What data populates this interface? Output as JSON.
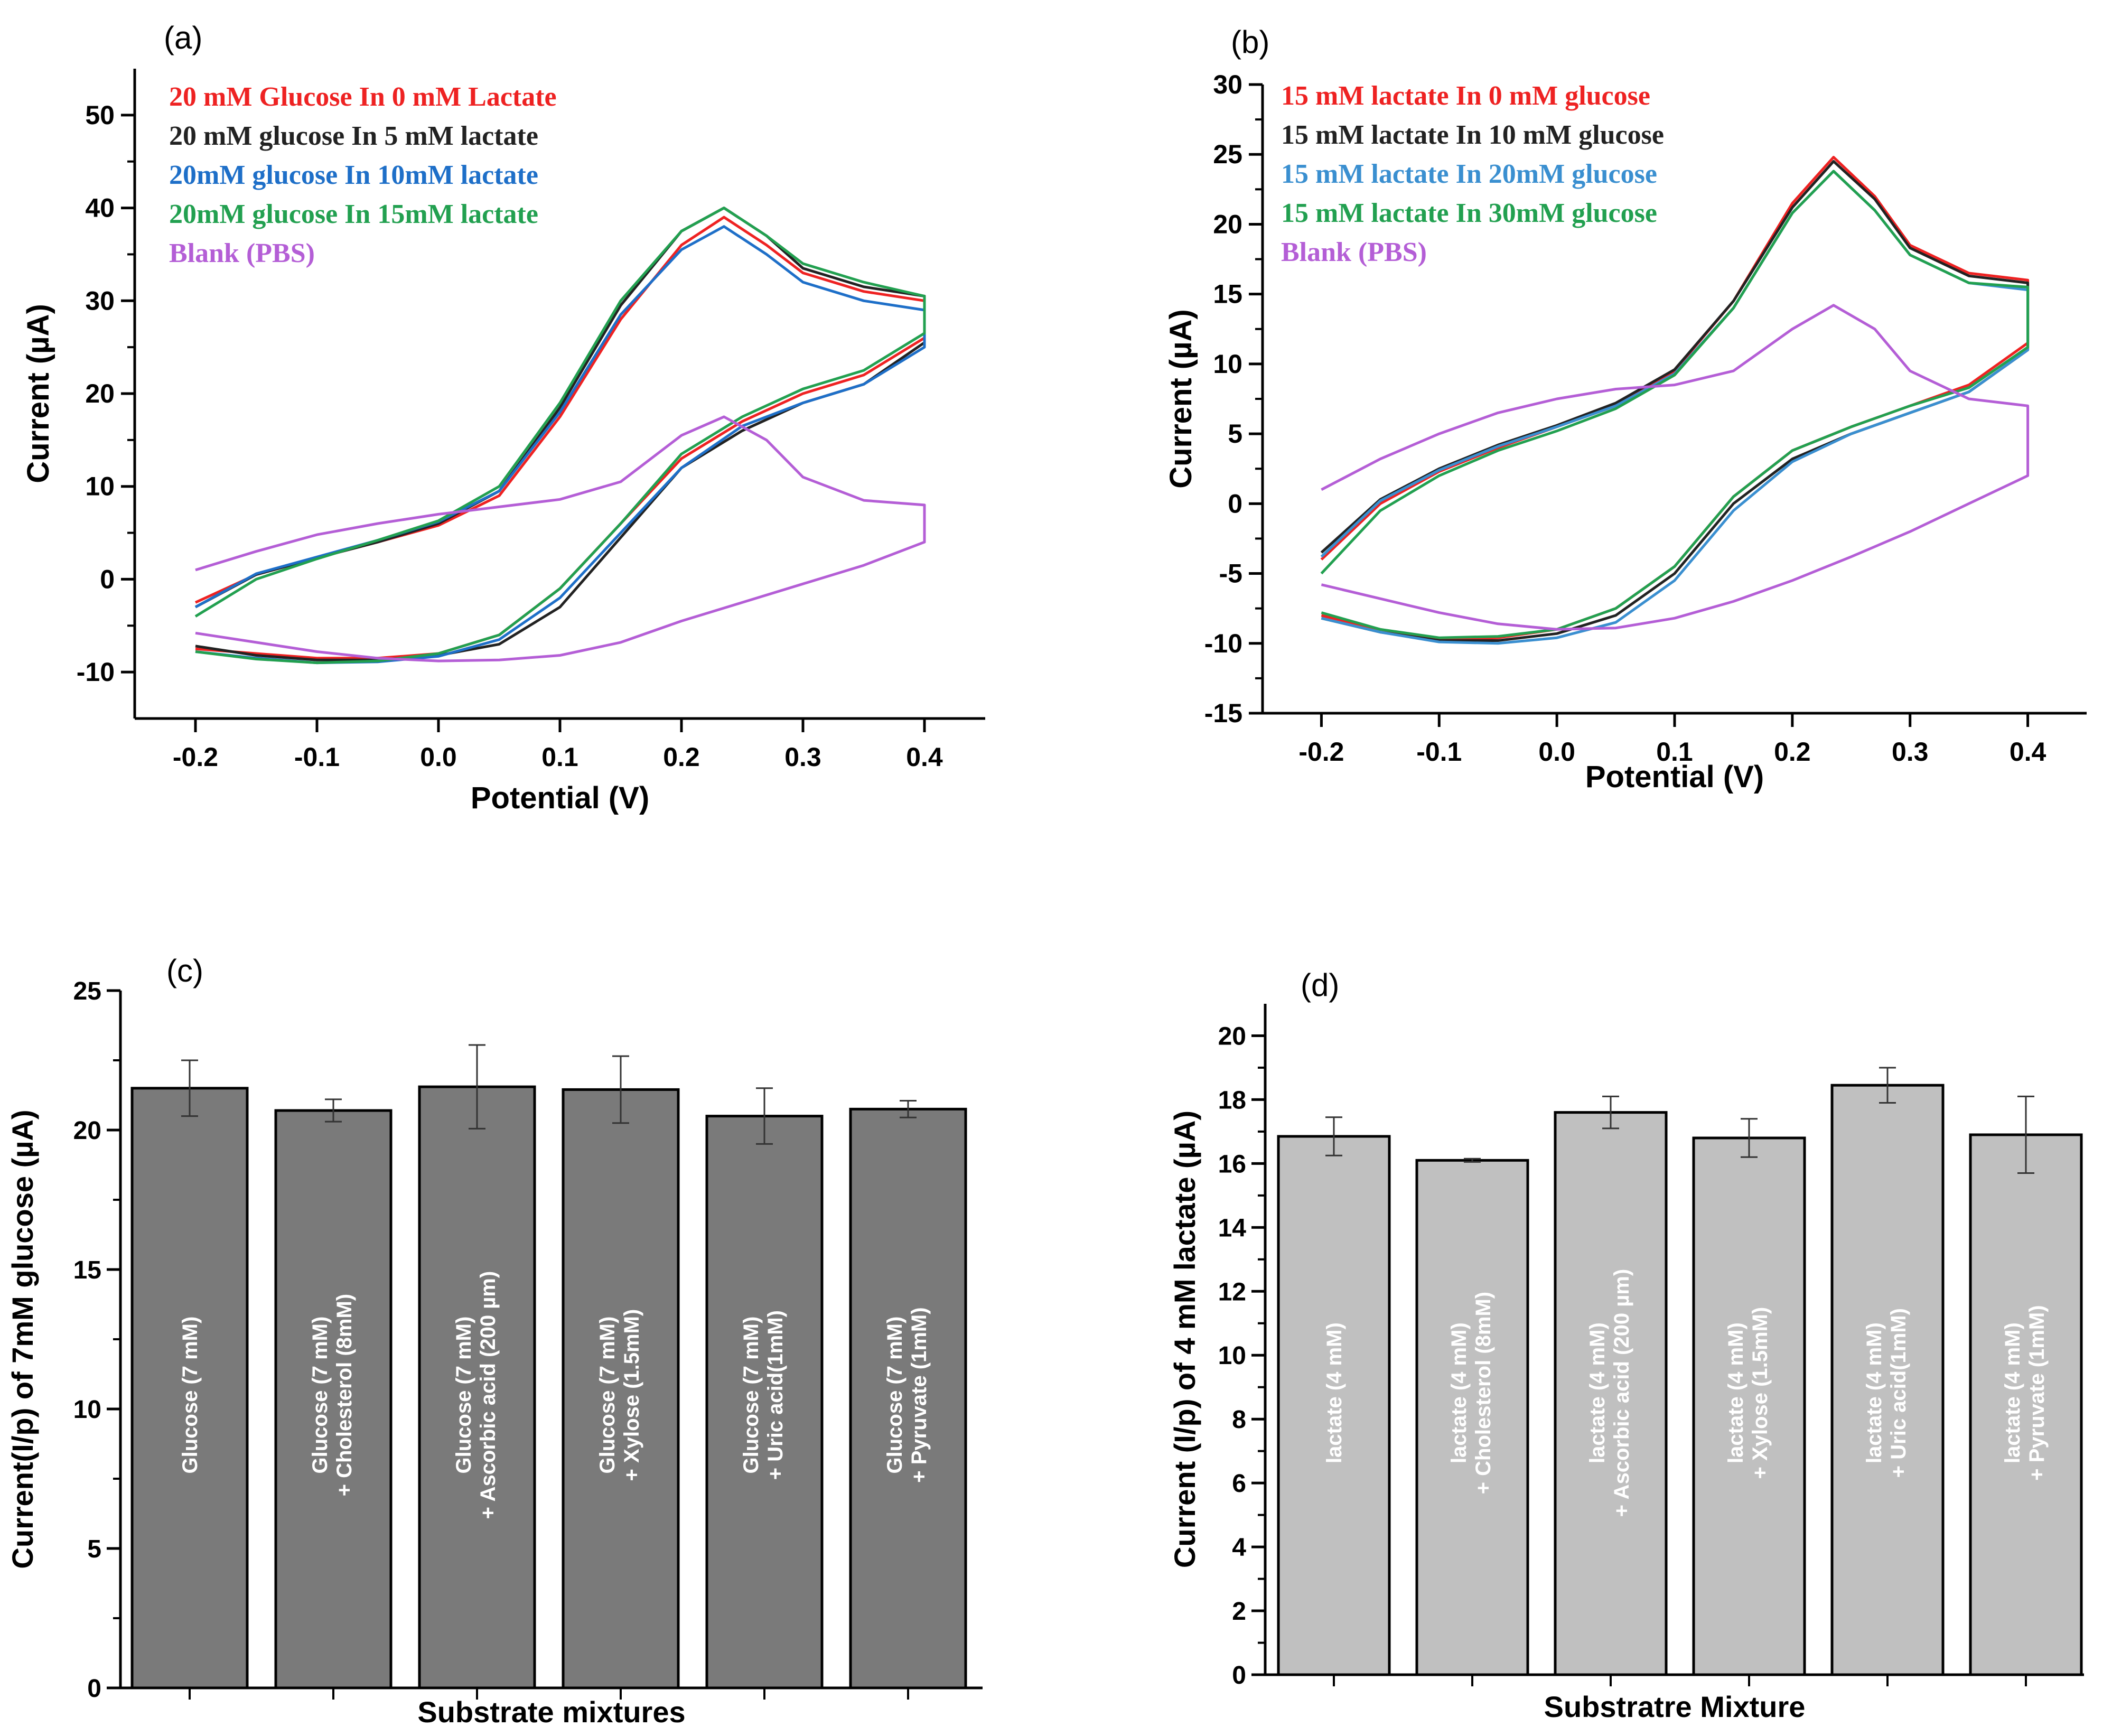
{
  "chart_data": [
    {
      "panel": "(a)",
      "type": "line",
      "xlabel": "Potential (V)",
      "ylabel": "Current (µA)",
      "xlim": [
        -0.25,
        0.45
      ],
      "ylim": [
        -15,
        55
      ],
      "xticks": [
        -0.2,
        -0.1,
        0.0,
        0.1,
        0.2,
        0.3,
        0.4
      ],
      "yticks": [
        -10,
        0,
        10,
        20,
        30,
        40,
        50
      ],
      "tick_labels_x": [
        "-0.2",
        "-0.1",
        "0.0",
        "0.1",
        "0.2",
        "0.3",
        "0.4"
      ],
      "tick_labels_y": [
        "-10",
        "0",
        "10",
        "20",
        "30",
        "40",
        "50"
      ],
      "legend_position": "top-left",
      "series": [
        {
          "name": "20 mM Glucose In 0 mM Lactate",
          "color": "#ee2222",
          "anodic_x": [
            -0.2,
            -0.15,
            -0.1,
            -0.05,
            0.0,
            0.05,
            0.1,
            0.15,
            0.2,
            0.235,
            0.27,
            0.3,
            0.35,
            0.4
          ],
          "anodic_y": [
            -2.5,
            0.5,
            2.3,
            4.0,
            5.8,
            9.0,
            17.5,
            28.0,
            36.0,
            39.0,
            36.0,
            33.0,
            31.0,
            30.0
          ],
          "cathodic_x": [
            0.4,
            0.35,
            0.3,
            0.25,
            0.2,
            0.15,
            0.1,
            0.05,
            0.0,
            -0.05,
            -0.1,
            -0.15,
            -0.2
          ],
          "cathodic_y": [
            26.0,
            22.0,
            20.0,
            17.0,
            13.0,
            6.0,
            -1.0,
            -6.0,
            -8.0,
            -8.5,
            -8.5,
            -8.0,
            -7.5
          ]
        },
        {
          "name": "20 mM glucose  In 5 mM lactate",
          "color": "#222222",
          "anodic_x": [
            -0.2,
            -0.15,
            -0.1,
            -0.05,
            0.0,
            0.05,
            0.1,
            0.15,
            0.2,
            0.235,
            0.27,
            0.3,
            0.35,
            0.4
          ],
          "anodic_y": [
            -3.0,
            0.5,
            2.3,
            4.0,
            6.0,
            9.5,
            18.5,
            29.5,
            37.5,
            40.0,
            37.0,
            33.5,
            31.5,
            30.5
          ],
          "cathodic_x": [
            0.4,
            0.35,
            0.3,
            0.25,
            0.2,
            0.15,
            0.1,
            0.05,
            0.0,
            -0.05,
            -0.1,
            -0.15,
            -0.2
          ],
          "cathodic_y": [
            25.5,
            21.0,
            19.0,
            16.0,
            12.0,
            4.5,
            -3.0,
            -7.0,
            -8.2,
            -8.7,
            -8.7,
            -8.2,
            -7.2
          ]
        },
        {
          "name": "20mM glucose In 10mM lactate",
          "color": "#1e6fc8",
          "anodic_x": [
            -0.2,
            -0.15,
            -0.1,
            -0.05,
            0.0,
            0.05,
            0.1,
            0.15,
            0.2,
            0.235,
            0.27,
            0.3,
            0.35,
            0.4
          ],
          "anodic_y": [
            -3.0,
            0.6,
            2.4,
            4.2,
            6.2,
            9.5,
            18.0,
            28.5,
            35.5,
            38.0,
            35.0,
            32.0,
            30.0,
            29.0
          ],
          "cathodic_x": [
            0.4,
            0.35,
            0.3,
            0.25,
            0.2,
            0.15,
            0.1,
            0.05,
            0.0,
            -0.05,
            -0.1,
            -0.15,
            -0.2
          ],
          "cathodic_y": [
            25.0,
            21.0,
            19.0,
            16.5,
            12.0,
            5.0,
            -2.0,
            -6.5,
            -8.3,
            -8.9,
            -9.0,
            -8.5,
            -7.8
          ]
        },
        {
          "name": "20mM glucose In 15mM lactate",
          "color": "#22a050",
          "anodic_x": [
            -0.2,
            -0.15,
            -0.1,
            -0.05,
            0.0,
            0.05,
            0.1,
            0.15,
            0.2,
            0.235,
            0.27,
            0.3,
            0.35,
            0.4
          ],
          "anodic_y": [
            -4.0,
            0.0,
            2.2,
            4.2,
            6.3,
            10.0,
            19.0,
            30.0,
            37.5,
            40.0,
            37.0,
            34.0,
            32.0,
            30.5
          ],
          "cathodic_x": [
            0.4,
            0.35,
            0.3,
            0.25,
            0.2,
            0.15,
            0.1,
            0.05,
            0.0,
            -0.05,
            -0.1,
            -0.15,
            -0.2
          ],
          "cathodic_y": [
            26.5,
            22.5,
            20.5,
            17.5,
            13.5,
            6.0,
            -1.0,
            -6.0,
            -8.0,
            -8.8,
            -9.0,
            -8.6,
            -7.8
          ]
        },
        {
          "name": "Blank (PBS)",
          "color": "#b45ed6",
          "anodic_x": [
            -0.2,
            -0.15,
            -0.1,
            -0.05,
            0.0,
            0.05,
            0.1,
            0.15,
            0.2,
            0.235,
            0.27,
            0.3,
            0.35,
            0.4
          ],
          "anodic_y": [
            1.0,
            3.0,
            4.8,
            6.0,
            7.0,
            7.8,
            8.6,
            10.5,
            15.5,
            17.5,
            15.0,
            11.0,
            8.5,
            8.0
          ],
          "cathodic_x": [
            0.4,
            0.35,
            0.3,
            0.25,
            0.2,
            0.15,
            0.1,
            0.05,
            0.0,
            -0.05,
            -0.1,
            -0.15,
            -0.2
          ],
          "cathodic_y": [
            4.0,
            1.5,
            -0.5,
            -2.5,
            -4.5,
            -6.8,
            -8.2,
            -8.7,
            -8.8,
            -8.5,
            -7.8,
            -6.8,
            -5.8
          ]
        }
      ]
    },
    {
      "panel": "(b)",
      "type": "line",
      "xlabel": "Potential (V)",
      "ylabel": "Current (µA)",
      "xlim": [
        -0.25,
        0.45
      ],
      "ylim": [
        -15,
        30
      ],
      "xticks": [
        -0.2,
        -0.1,
        0.0,
        0.1,
        0.2,
        0.3,
        0.4
      ],
      "yticks": [
        -15,
        -10,
        -5,
        0,
        5,
        10,
        15,
        20,
        25,
        30
      ],
      "tick_labels_x": [
        "-0.2",
        "-0.1",
        "0.0",
        "0.1",
        "0.2",
        "0.3",
        "0.4"
      ],
      "tick_labels_y": [
        "-15",
        "-10",
        "-5",
        "0",
        "5",
        "10",
        "15",
        "20",
        "25",
        "30"
      ],
      "legend_position": "top-left",
      "series": [
        {
          "name": "15 mM lactate In 0 mM glucose",
          "color": "#ee2222",
          "anodic_x": [
            -0.2,
            -0.15,
            -0.1,
            -0.05,
            0.0,
            0.05,
            0.1,
            0.15,
            0.2,
            0.235,
            0.27,
            0.3,
            0.35,
            0.4
          ],
          "anodic_y": [
            -4.0,
            0.0,
            2.3,
            4.0,
            5.5,
            7.0,
            9.5,
            14.5,
            21.5,
            24.8,
            22.0,
            18.5,
            16.5,
            16.0
          ],
          "cathodic_x": [
            0.4,
            0.35,
            0.3,
            0.25,
            0.2,
            0.15,
            0.1,
            0.05,
            0.0,
            -0.05,
            -0.1,
            -0.15,
            -0.2
          ],
          "cathodic_y": [
            11.5,
            8.5,
            7.0,
            5.5,
            3.8,
            0.5,
            -4.5,
            -7.5,
            -9.0,
            -9.6,
            -9.7,
            -9.0,
            -8.0
          ]
        },
        {
          "name": "15 mM lactate In 10 mM glucose",
          "color": "#222222",
          "anodic_x": [
            -0.2,
            -0.15,
            -0.1,
            -0.05,
            0.0,
            0.05,
            0.1,
            0.15,
            0.2,
            0.235,
            0.27,
            0.3,
            0.35,
            0.4
          ],
          "anodic_y": [
            -3.5,
            0.3,
            2.5,
            4.2,
            5.6,
            7.2,
            9.6,
            14.5,
            21.2,
            24.5,
            21.8,
            18.3,
            16.3,
            15.8
          ],
          "cathodic_x": [
            0.4,
            0.35,
            0.3,
            0.25,
            0.2,
            0.15,
            0.1,
            0.05,
            0.0,
            -0.05,
            -0.1,
            -0.15,
            -0.2
          ],
          "cathodic_y": [
            11.0,
            8.0,
            6.5,
            5.0,
            3.2,
            0.0,
            -5.0,
            -8.0,
            -9.3,
            -9.8,
            -9.8,
            -9.2,
            -8.2
          ]
        },
        {
          "name": "15 mM lactate In 20mM glucose",
          "color": "#3a8fd0",
          "anodic_x": [
            -0.2,
            -0.15,
            -0.1,
            -0.05,
            0.0,
            0.05,
            0.1,
            0.15,
            0.2,
            0.235,
            0.27,
            0.3,
            0.35,
            0.4
          ],
          "anodic_y": [
            -3.8,
            0.2,
            2.4,
            4.1,
            5.5,
            7.0,
            9.3,
            14.0,
            20.8,
            23.8,
            21.0,
            17.8,
            15.8,
            15.3
          ],
          "cathodic_x": [
            0.4,
            0.35,
            0.3,
            0.25,
            0.2,
            0.15,
            0.1,
            0.05,
            0.0,
            -0.05,
            -0.1,
            -0.15,
            -0.2
          ],
          "cathodic_y": [
            11.0,
            8.0,
            6.5,
            5.0,
            3.0,
            -0.5,
            -5.5,
            -8.5,
            -9.6,
            -10.0,
            -9.9,
            -9.2,
            -8.2
          ]
        },
        {
          "name": "15 mM lactate In 30mM glucose",
          "color": "#22a050",
          "anodic_x": [
            -0.2,
            -0.15,
            -0.1,
            -0.05,
            0.0,
            0.05,
            0.1,
            0.15,
            0.2,
            0.235,
            0.27,
            0.3,
            0.35,
            0.4
          ],
          "anodic_y": [
            -5.0,
            -0.5,
            2.0,
            3.8,
            5.2,
            6.8,
            9.2,
            14.0,
            20.8,
            23.8,
            21.0,
            17.8,
            15.8,
            15.5
          ],
          "cathodic_x": [
            0.4,
            0.35,
            0.3,
            0.25,
            0.2,
            0.15,
            0.1,
            0.05,
            0.0,
            -0.05,
            -0.1,
            -0.15,
            -0.2
          ],
          "cathodic_y": [
            11.2,
            8.3,
            7.0,
            5.5,
            3.8,
            0.5,
            -4.5,
            -7.5,
            -9.0,
            -9.5,
            -9.6,
            -9.0,
            -7.8
          ]
        },
        {
          "name": "Blank (PBS)",
          "color": "#b45ed6",
          "anodic_x": [
            -0.2,
            -0.15,
            -0.1,
            -0.05,
            0.0,
            0.05,
            0.1,
            0.15,
            0.2,
            0.235,
            0.27,
            0.3,
            0.35,
            0.4
          ],
          "anodic_y": [
            1.0,
            3.2,
            5.0,
            6.5,
            7.5,
            8.2,
            8.5,
            9.5,
            12.5,
            14.2,
            12.5,
            9.5,
            7.5,
            7.0
          ],
          "cathodic_x": [
            0.4,
            0.35,
            0.3,
            0.25,
            0.2,
            0.15,
            0.1,
            0.05,
            0.0,
            -0.05,
            -0.1,
            -0.15,
            -0.2
          ],
          "cathodic_y": [
            2.0,
            0.0,
            -2.0,
            -3.8,
            -5.5,
            -7.0,
            -8.2,
            -8.9,
            -9.0,
            -8.6,
            -7.8,
            -6.8,
            -5.8
          ]
        }
      ]
    },
    {
      "panel": "(c)",
      "type": "bar",
      "xlabel": "Substrate mixtures",
      "ylabel": "Current(I/p) of 7mM glucose (µA)",
      "ylim": [
        0,
        25
      ],
      "yticks": [
        0,
        5,
        10,
        15,
        20,
        25
      ],
      "tick_labels_y": [
        "0",
        "5",
        "10",
        "15",
        "20",
        "25"
      ],
      "bar_color": "#7a7a7a",
      "categories": [
        {
          "line1": "Glucose (7 mM)",
          "line2": ""
        },
        {
          "line1": "Glucose (7 mM)",
          "line2": "+ Cholesterol (8mM)"
        },
        {
          "line1": "Glucose (7 mM)",
          "line2": "+ Ascorbic acid (200 µm)"
        },
        {
          "line1": "Glucose (7 mM)",
          "line2": "+ Xylose (1.5mM)"
        },
        {
          "line1": "Glucose (7 mM)",
          "line2": "+ Uric acid(1mM)"
        },
        {
          "line1": "Glucose (7 mM)",
          "line2": "+ Pyruvate (1mM)"
        }
      ],
      "values": [
        21.5,
        20.7,
        21.55,
        21.45,
        20.5,
        20.75
      ],
      "errors": [
        1.0,
        0.4,
        1.5,
        1.2,
        1.0,
        0.3
      ]
    },
    {
      "panel": "(d)",
      "type": "bar",
      "xlabel": "Substratre Mixture",
      "ylabel": "Current (I/p) of 4 mM lactate (µA)",
      "ylim": [
        0,
        21
      ],
      "yticks": [
        0,
        2,
        4,
        6,
        8,
        10,
        12,
        14,
        16,
        18,
        20
      ],
      "tick_labels_y": [
        "0",
        "2",
        "4",
        "6",
        "8",
        "10",
        "12",
        "14",
        "16",
        "18",
        "20"
      ],
      "bar_color": "#c0c0c0",
      "categories": [
        {
          "line1": "lactate (4 mM)",
          "line2": ""
        },
        {
          "line1": "lactate (4 mM)",
          "line2": "+ Cholesterol (8mM)"
        },
        {
          "line1": "lactate (4 mM)",
          "line2": "+ Ascorbic acid (200 µm)"
        },
        {
          "line1": "lactate (4 mM)",
          "line2": "+ Xylose (1.5mM)"
        },
        {
          "line1": "lactate (4 mM)",
          "line2": "+ Uric acid(1mM)"
        },
        {
          "line1": "lactate (4 mM)",
          "line2": "+ Pyruvate (1mM)"
        }
      ],
      "values": [
        16.85,
        16.1,
        17.6,
        16.8,
        18.45,
        16.9
      ],
      "errors": [
        0.6,
        0.05,
        0.5,
        0.6,
        0.55,
        1.2
      ]
    }
  ]
}
